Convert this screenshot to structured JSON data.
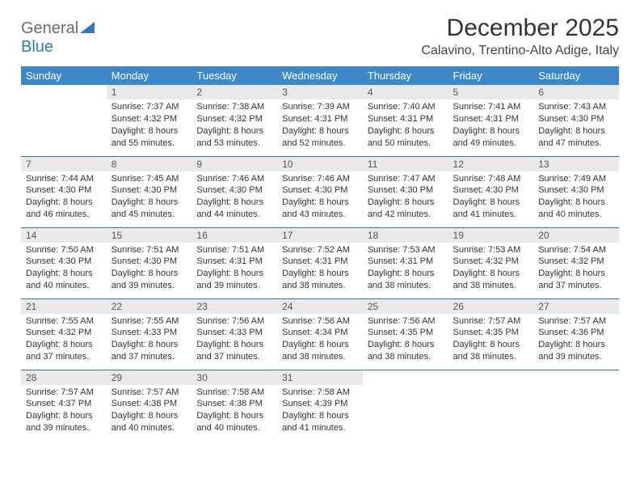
{
  "brand": {
    "part1": "General",
    "part2": "Blue"
  },
  "title": "December 2025",
  "location": "Calavino, Trentino-Alto Adige, Italy",
  "header_bg": "#3d88c9",
  "header_fg": "#ffffff",
  "daynum_bg": "#e9e9e9",
  "row_border": "#3d6ea5",
  "weekdays": [
    "Sunday",
    "Monday",
    "Tuesday",
    "Wednesday",
    "Thursday",
    "Friday",
    "Saturday"
  ],
  "weeks": [
    [
      null,
      {
        "n": "1",
        "sr": "Sunrise: 7:37 AM",
        "ss": "Sunset: 4:32 PM",
        "d1": "Daylight: 8 hours",
        "d2": "and 55 minutes."
      },
      {
        "n": "2",
        "sr": "Sunrise: 7:38 AM",
        "ss": "Sunset: 4:32 PM",
        "d1": "Daylight: 8 hours",
        "d2": "and 53 minutes."
      },
      {
        "n": "3",
        "sr": "Sunrise: 7:39 AM",
        "ss": "Sunset: 4:31 PM",
        "d1": "Daylight: 8 hours",
        "d2": "and 52 minutes."
      },
      {
        "n": "4",
        "sr": "Sunrise: 7:40 AM",
        "ss": "Sunset: 4:31 PM",
        "d1": "Daylight: 8 hours",
        "d2": "and 50 minutes."
      },
      {
        "n": "5",
        "sr": "Sunrise: 7:41 AM",
        "ss": "Sunset: 4:31 PM",
        "d1": "Daylight: 8 hours",
        "d2": "and 49 minutes."
      },
      {
        "n": "6",
        "sr": "Sunrise: 7:43 AM",
        "ss": "Sunset: 4:30 PM",
        "d1": "Daylight: 8 hours",
        "d2": "and 47 minutes."
      }
    ],
    [
      {
        "n": "7",
        "sr": "Sunrise: 7:44 AM",
        "ss": "Sunset: 4:30 PM",
        "d1": "Daylight: 8 hours",
        "d2": "and 46 minutes."
      },
      {
        "n": "8",
        "sr": "Sunrise: 7:45 AM",
        "ss": "Sunset: 4:30 PM",
        "d1": "Daylight: 8 hours",
        "d2": "and 45 minutes."
      },
      {
        "n": "9",
        "sr": "Sunrise: 7:46 AM",
        "ss": "Sunset: 4:30 PM",
        "d1": "Daylight: 8 hours",
        "d2": "and 44 minutes."
      },
      {
        "n": "10",
        "sr": "Sunrise: 7:46 AM",
        "ss": "Sunset: 4:30 PM",
        "d1": "Daylight: 8 hours",
        "d2": "and 43 minutes."
      },
      {
        "n": "11",
        "sr": "Sunrise: 7:47 AM",
        "ss": "Sunset: 4:30 PM",
        "d1": "Daylight: 8 hours",
        "d2": "and 42 minutes."
      },
      {
        "n": "12",
        "sr": "Sunrise: 7:48 AM",
        "ss": "Sunset: 4:30 PM",
        "d1": "Daylight: 8 hours",
        "d2": "and 41 minutes."
      },
      {
        "n": "13",
        "sr": "Sunrise: 7:49 AM",
        "ss": "Sunset: 4:30 PM",
        "d1": "Daylight: 8 hours",
        "d2": "and 40 minutes."
      }
    ],
    [
      {
        "n": "14",
        "sr": "Sunrise: 7:50 AM",
        "ss": "Sunset: 4:30 PM",
        "d1": "Daylight: 8 hours",
        "d2": "and 40 minutes."
      },
      {
        "n": "15",
        "sr": "Sunrise: 7:51 AM",
        "ss": "Sunset: 4:30 PM",
        "d1": "Daylight: 8 hours",
        "d2": "and 39 minutes."
      },
      {
        "n": "16",
        "sr": "Sunrise: 7:51 AM",
        "ss": "Sunset: 4:31 PM",
        "d1": "Daylight: 8 hours",
        "d2": "and 39 minutes."
      },
      {
        "n": "17",
        "sr": "Sunrise: 7:52 AM",
        "ss": "Sunset: 4:31 PM",
        "d1": "Daylight: 8 hours",
        "d2": "and 38 minutes."
      },
      {
        "n": "18",
        "sr": "Sunrise: 7:53 AM",
        "ss": "Sunset: 4:31 PM",
        "d1": "Daylight: 8 hours",
        "d2": "and 38 minutes."
      },
      {
        "n": "19",
        "sr": "Sunrise: 7:53 AM",
        "ss": "Sunset: 4:32 PM",
        "d1": "Daylight: 8 hours",
        "d2": "and 38 minutes."
      },
      {
        "n": "20",
        "sr": "Sunrise: 7:54 AM",
        "ss": "Sunset: 4:32 PM",
        "d1": "Daylight: 8 hours",
        "d2": "and 37 minutes."
      }
    ],
    [
      {
        "n": "21",
        "sr": "Sunrise: 7:55 AM",
        "ss": "Sunset: 4:32 PM",
        "d1": "Daylight: 8 hours",
        "d2": "and 37 minutes."
      },
      {
        "n": "22",
        "sr": "Sunrise: 7:55 AM",
        "ss": "Sunset: 4:33 PM",
        "d1": "Daylight: 8 hours",
        "d2": "and 37 minutes."
      },
      {
        "n": "23",
        "sr": "Sunrise: 7:56 AM",
        "ss": "Sunset: 4:33 PM",
        "d1": "Daylight: 8 hours",
        "d2": "and 37 minutes."
      },
      {
        "n": "24",
        "sr": "Sunrise: 7:56 AM",
        "ss": "Sunset: 4:34 PM",
        "d1": "Daylight: 8 hours",
        "d2": "and 38 minutes."
      },
      {
        "n": "25",
        "sr": "Sunrise: 7:56 AM",
        "ss": "Sunset: 4:35 PM",
        "d1": "Daylight: 8 hours",
        "d2": "and 38 minutes."
      },
      {
        "n": "26",
        "sr": "Sunrise: 7:57 AM",
        "ss": "Sunset: 4:35 PM",
        "d1": "Daylight: 8 hours",
        "d2": "and 38 minutes."
      },
      {
        "n": "27",
        "sr": "Sunrise: 7:57 AM",
        "ss": "Sunset: 4:36 PM",
        "d1": "Daylight: 8 hours",
        "d2": "and 39 minutes."
      }
    ],
    [
      {
        "n": "28",
        "sr": "Sunrise: 7:57 AM",
        "ss": "Sunset: 4:37 PM",
        "d1": "Daylight: 8 hours",
        "d2": "and 39 minutes."
      },
      {
        "n": "29",
        "sr": "Sunrise: 7:57 AM",
        "ss": "Sunset: 4:38 PM",
        "d1": "Daylight: 8 hours",
        "d2": "and 40 minutes."
      },
      {
        "n": "30",
        "sr": "Sunrise: 7:58 AM",
        "ss": "Sunset: 4:38 PM",
        "d1": "Daylight: 8 hours",
        "d2": "and 40 minutes."
      },
      {
        "n": "31",
        "sr": "Sunrise: 7:58 AM",
        "ss": "Sunset: 4:39 PM",
        "d1": "Daylight: 8 hours",
        "d2": "and 41 minutes."
      },
      null,
      null,
      null
    ]
  ]
}
